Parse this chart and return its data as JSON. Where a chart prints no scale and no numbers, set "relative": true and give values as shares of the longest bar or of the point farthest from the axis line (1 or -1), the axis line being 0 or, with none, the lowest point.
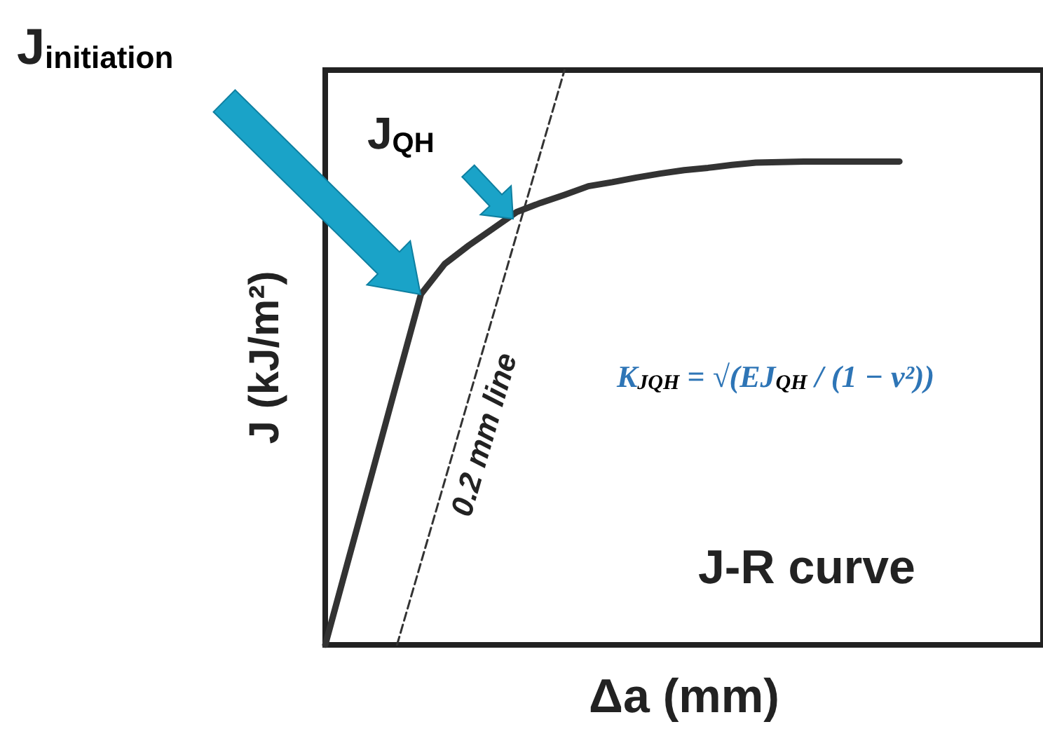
{
  "chart_data": {
    "type": "line",
    "relative": true,
    "xlabel": "Δa (mm)",
    "ylabel": "J (kJ/m²)",
    "categories": [
      null,
      null,
      null,
      null,
      null,
      null,
      null,
      null,
      null,
      null,
      null,
      null,
      null,
      null,
      null,
      null,
      null,
      null,
      null,
      null,
      null,
      null,
      null,
      null,
      null,
      null,
      null,
      null,
      null,
      null,
      null
    ],
    "tick_labels": false,
    "grid": false,
    "marker": "none",
    "line_style": "solid",
    "annotations": [
      "J$_{initiation}$",
      "J$_{QH}$",
      "K$_{JQH}$ = √(EJ$_{QH}$ / (1 − ν²))",
      "0.2 mm line",
      "J-R curve"
    ],
    "series": [
      {
        "color": "#333333",
        "values": [
          0,
          0.153,
          0.305,
          0.458,
          0.61,
          0.663,
          0.695,
          0.724,
          0.753,
          0.769,
          0.783,
          0.798,
          0.805,
          0.813,
          0.82,
          0.826,
          0.83,
          0.835,
          0.839,
          0.84,
          0.841,
          0.841,
          0.841,
          0.841,
          0.841,
          null,
          null,
          null,
          null,
          null,
          null
        ]
      },
      {
        "color": "#333333",
        "line_style": "dashed",
        "values": [
          null,
          null,
          null,
          0,
          0.143,
          0.286,
          0.429,
          0.571,
          0.714,
          0.857,
          1,
          null,
          null,
          null,
          null,
          null,
          null,
          null,
          null,
          null,
          null,
          null,
          null,
          null,
          null,
          null,
          null,
          null,
          null,
          null,
          null
        ]
      }
    ]
  }
}
